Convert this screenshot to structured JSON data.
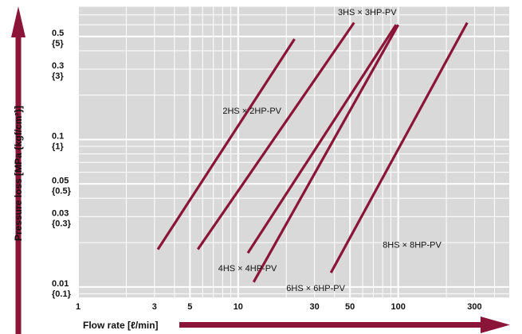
{
  "chart_data": {
    "type": "line",
    "x_scale": "log",
    "y_scale": "log",
    "xlim": [
      1,
      500
    ],
    "ylim": [
      0.0085,
      0.8
    ],
    "xlabel": "Flow rate [ℓ/min]",
    "ylabel": "Pressure loss [MPa {kgf/cm²}]",
    "grid": true,
    "line_color": "#8a1538",
    "axis_arrow_color": "#8a1538",
    "plot_bg": "#d9d9d9",
    "x_ticks": [
      {
        "value": 1,
        "label": "1"
      },
      {
        "value": 3,
        "label": "3"
      },
      {
        "value": 5,
        "label": "5"
      },
      {
        "value": 10,
        "label": "10"
      },
      {
        "value": 30,
        "label": "30"
      },
      {
        "value": 50,
        "label": "50"
      },
      {
        "value": 100,
        "label": "100"
      },
      {
        "value": 300,
        "label": "300"
      }
    ],
    "y_ticks": [
      {
        "value": 0.5,
        "label": "0.5",
        "sub": "{5}"
      },
      {
        "value": 0.3,
        "label": "0.3",
        "sub": "{3}"
      },
      {
        "value": 0.1,
        "label": "0.1",
        "sub": "{1}"
      },
      {
        "value": 0.05,
        "label": "0.05",
        "sub": "{0.5}"
      },
      {
        "value": 0.03,
        "label": "0.03",
        "sub": "{0.3}"
      },
      {
        "value": 0.01,
        "label": "0.01",
        "sub": "{0.1}"
      }
    ],
    "series": [
      {
        "name": "2HS × 2HP-PV",
        "x": [
          3.15,
          22.5
        ],
        "y": [
          0.018,
          0.48
        ],
        "label_at": [
          8,
          0.15
        ]
      },
      {
        "name": "3HS × 3HP-PV",
        "x": [
          5.6,
          53
        ],
        "y": [
          0.018,
          0.62
        ],
        "label_at": [
          42,
          0.7
        ]
      },
      {
        "name": "4HS × 4HP-PV",
        "x": [
          11.5,
          97
        ],
        "y": [
          0.017,
          0.6
        ],
        "label_at": [
          7.5,
          0.0128
        ]
      },
      {
        "name": "6HS × 6HP-PV",
        "x": [
          12.5,
          100
        ],
        "y": [
          0.0108,
          0.6
        ],
        "label_at": [
          20,
          0.0094
        ]
      },
      {
        "name": "8HS × 8HP-PV",
        "x": [
          38,
          270
        ],
        "y": [
          0.0125,
          0.62
        ],
        "label_at": [
          80,
          0.0185
        ]
      }
    ]
  }
}
